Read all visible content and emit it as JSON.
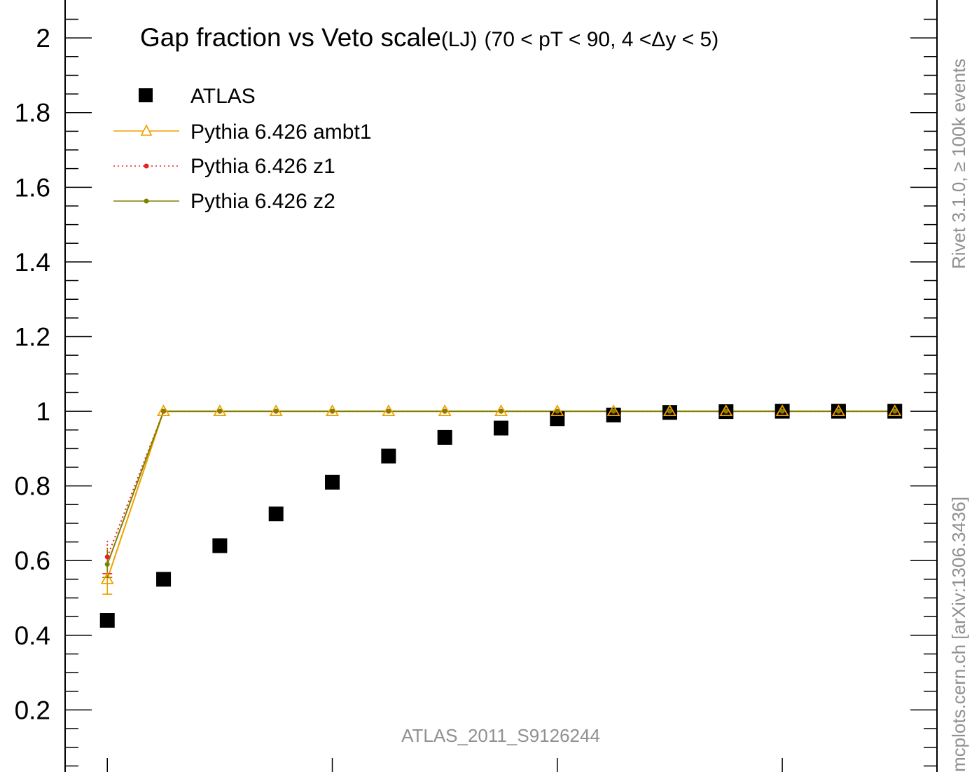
{
  "chart_data": {
    "type": "scatter",
    "title": "Gap fraction vs Veto scale",
    "title_suffix": "(LJ)",
    "subtitle": "(70 < pT <  90, 4 <Δy < 5)",
    "xlabel": "",
    "ylabel": "",
    "x_values": [
      1,
      2,
      3,
      4,
      5,
      6,
      7,
      8,
      9,
      10,
      11,
      12,
      13,
      14,
      15
    ],
    "xlim": [
      0.25,
      15.75
    ],
    "ylim": [
      0,
      2.05
    ],
    "y_ticks_major": [
      0.2,
      0.4,
      0.6,
      0.8,
      1,
      1.2,
      1.4,
      1.6,
      1.8,
      2
    ],
    "y_tick_labels": [
      "0.2",
      "0.4",
      "0.6",
      "0.8",
      "1",
      "1.2",
      "1.4",
      "1.6",
      "1.8",
      "2"
    ],
    "x_ticks_major": [
      1,
      5,
      9,
      13
    ],
    "grid": false,
    "legend_position": "top-left",
    "series": [
      {
        "name": "ATLAS",
        "color": "#000000",
        "marker": "square",
        "line": "none",
        "values": [
          0.44,
          0.55,
          0.64,
          0.725,
          0.81,
          0.88,
          0.93,
          0.955,
          0.98,
          0.99,
          0.997,
          0.999,
          1.0,
          1.0,
          1.0
        ]
      },
      {
        "name": "Pythia 6.426 ambt1",
        "color": "#f0a000",
        "marker": "open-triangle",
        "line": "solid",
        "values": [
          0.55,
          1,
          1,
          1,
          1,
          1,
          1,
          1,
          1,
          1,
          1,
          1,
          1,
          1,
          1
        ],
        "error_first": [
          0.51,
          0.59
        ]
      },
      {
        "name": "Pythia 6.426 z1",
        "color": "#e8201e",
        "marker": "dot",
        "line": "dotted",
        "values": [
          0.61,
          1,
          1,
          1,
          1,
          1,
          1,
          1,
          1,
          1,
          1,
          1,
          1,
          1,
          1
        ],
        "error_first": [
          0.565,
          0.655
        ]
      },
      {
        "name": "Pythia 6.426 z2",
        "color": "#808000",
        "marker": "dot",
        "line": "solid",
        "values": [
          0.59,
          1,
          1,
          1,
          1,
          1,
          1,
          1,
          1,
          1,
          1,
          1,
          1,
          1,
          1
        ],
        "error_first": [
          0.555,
          0.63
        ]
      }
    ],
    "annotations": {
      "analysis_id": "ATLAS_2011_S9126244",
      "rivet_label": "Rivet 3.1.0, ≥ 100k events",
      "mcplots_label": "mcplots.cern.ch [arXiv:1306.3436]"
    }
  }
}
